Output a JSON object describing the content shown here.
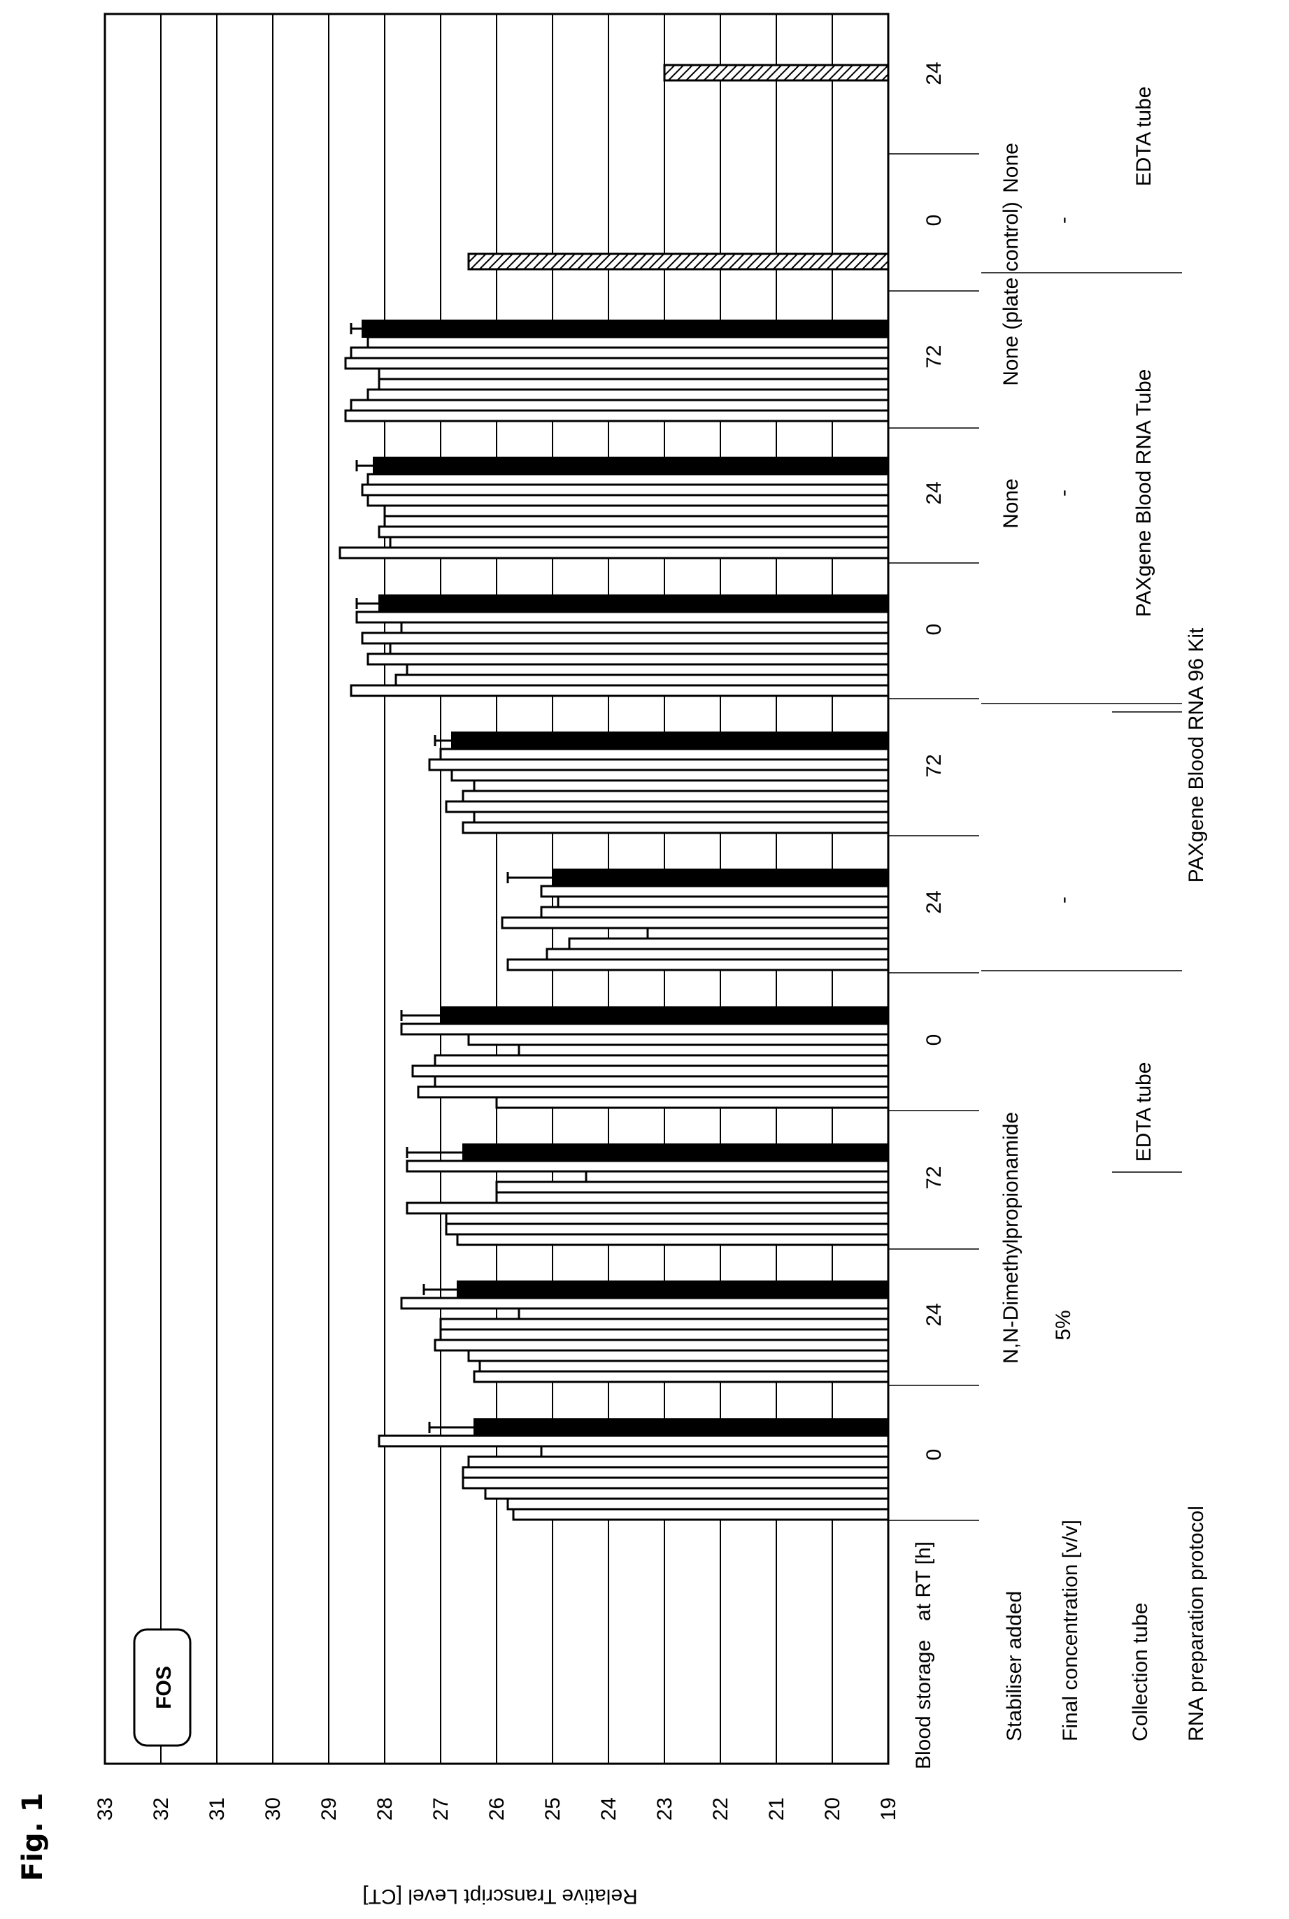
{
  "figure_label": "Fig. 1",
  "chart_data": {
    "type": "bar",
    "title": "FOS",
    "ylabel": "Relative Transcript Level [CT]",
    "ylim": [
      19,
      33
    ],
    "yticks": [
      19,
      20,
      21,
      22,
      23,
      24,
      25,
      26,
      27,
      28,
      29,
      30,
      31,
      32,
      33
    ],
    "grid": true,
    "groups": [
      {
        "values": [
          25.7,
          25.8,
          26.2,
          26.6,
          26.6,
          26.5,
          25.2,
          28.1
        ],
        "mean": 26.4,
        "error": 0.8
      },
      {
        "values": [
          26.4,
          26.3,
          26.5,
          27.1,
          27.0,
          27.0,
          25.6,
          27.7
        ],
        "mean": 26.7,
        "error": 0.6
      },
      {
        "values": [
          26.7,
          26.9,
          26.9,
          27.6,
          26.0,
          26.0,
          24.4,
          27.6
        ],
        "mean": 26.6,
        "error": 1.0
      },
      {
        "values": [
          26.0,
          27.4,
          27.1,
          27.5,
          27.1,
          25.6,
          26.5,
          27.7
        ],
        "mean": 27.0,
        "error": 0.7
      },
      {
        "values": [
          25.8,
          25.1,
          24.7,
          23.3,
          25.9,
          25.2,
          24.9,
          25.2
        ],
        "mean": 25.0,
        "error": 0.8
      },
      {
        "values": [
          26.6,
          26.4,
          26.9,
          26.6,
          26.4,
          26.8,
          27.2,
          27.0
        ],
        "mean": 26.8,
        "error": 0.3
      },
      {
        "values": [
          28.6,
          27.8,
          27.6,
          28.3,
          27.9,
          28.4,
          27.7,
          28.5
        ],
        "mean": 28.1,
        "error": 0.4
      },
      {
        "values": [
          28.8,
          27.9,
          28.1,
          28.0,
          28.0,
          28.3,
          28.4,
          28.3
        ],
        "mean": 28.2,
        "error": 0.3
      },
      {
        "values": [
          28.7,
          28.6,
          28.3,
          28.1,
          28.1,
          28.7,
          28.6,
          28.3
        ],
        "mean": 28.4,
        "error": 0.2
      },
      {
        "values": [
          26.5
        ],
        "mean": null,
        "error": null
      },
      {
        "values": [
          23.0
        ],
        "mean": null,
        "error": null
      }
    ],
    "table": {
      "row_labels": {
        "blood_storage": "Blood storage",
        "at_rt": "at RT [h]",
        "stabiliser": "Stabiliser added",
        "final_concentration": "Final concentration [v/v]",
        "collection_tube": "Collection tube",
        "rna_protocol": "RNA preparation protocol"
      },
      "time_points": [
        "0",
        "24",
        "72",
        "0",
        "24",
        "72",
        "0",
        "24",
        "72",
        "0",
        "24"
      ],
      "stabilisers": [
        "N,N-Dimethylpropionamide",
        "None",
        "None",
        "None (plate control)"
      ],
      "concentrations": [
        "5%",
        "-",
        "-",
        "-"
      ],
      "collection_tubes": [
        "EDTA tube",
        "PAXgene Blood RNA Tube",
        "EDTA tube"
      ],
      "rna_protocols": [
        "PAXgene Blood RNA 96 Kit"
      ]
    }
  }
}
